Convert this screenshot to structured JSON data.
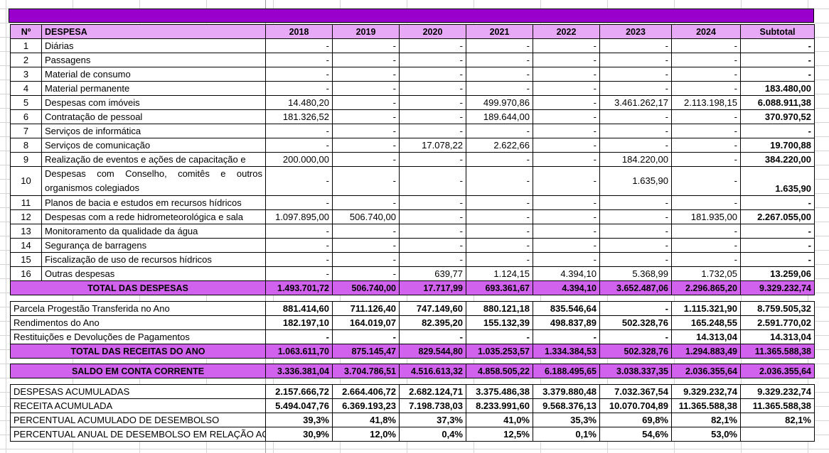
{
  "header": {
    "num": "Nº",
    "despesa": "DESPESA",
    "years": [
      "2018",
      "2019",
      "2020",
      "2021",
      "2022",
      "2023",
      "2024"
    ],
    "subtotal": "Subtotal"
  },
  "despesas": [
    {
      "n": "1",
      "label": "Diárias",
      "v": [
        "-",
        "-",
        "-",
        "-",
        "-",
        "-",
        "-"
      ],
      "sub": "-"
    },
    {
      "n": "2",
      "label": "Passagens",
      "v": [
        "-",
        "-",
        "-",
        "-",
        "-",
        "-",
        "-"
      ],
      "sub": "-"
    },
    {
      "n": "3",
      "label": "Material de consumo",
      "v": [
        "-",
        "-",
        "-",
        "-",
        "-",
        "-",
        "-"
      ],
      "sub": "-"
    },
    {
      "n": "4",
      "label": "Material permanente",
      "v": [
        "-",
        "-",
        "-",
        "-",
        "-",
        "-",
        "-"
      ],
      "sub": "183.480,00"
    },
    {
      "n": "5",
      "label": "Despesas com imóveis",
      "v": [
        "14.480,20",
        "-",
        "-",
        "499.970,86",
        "-",
        "3.461.262,17",
        "2.113.198,15"
      ],
      "sub": "6.088.911,38"
    },
    {
      "n": "6",
      "label": "Contratação de pessoal",
      "v": [
        "181.326,52",
        "-",
        "-",
        "189.644,00",
        "-",
        "-",
        "-"
      ],
      "sub": "370.970,52"
    },
    {
      "n": "7",
      "label": "Serviços de informática",
      "v": [
        "-",
        "-",
        "-",
        "-",
        "-",
        "-",
        "-"
      ],
      "sub": "-"
    },
    {
      "n": "8",
      "label": "Serviços de comunicação",
      "v": [
        "-",
        "-",
        "17.078,22",
        "2.622,66",
        "-",
        "-",
        "-"
      ],
      "sub": "19.700,88"
    },
    {
      "n": "9",
      "label": "Realização de eventos e ações de capacitação e",
      "v": [
        "200.000,00",
        "-",
        "-",
        "-",
        "-",
        "184.220,00",
        "-"
      ],
      "sub": "384.220,00"
    },
    {
      "n": "10",
      "label": "Despesas com Conselho, comitês e outros organismos colegiados",
      "v": [
        "-",
        "-",
        "-",
        "-",
        "-",
        "1.635,90",
        "-"
      ],
      "sub": "1.635,90",
      "tall": true
    },
    {
      "n": "11",
      "label": "Planos de bacia e estudos em recursos hídricos",
      "v": [
        "-",
        "-",
        "-",
        "-",
        "-",
        "-",
        "-"
      ],
      "sub": "-"
    },
    {
      "n": "12",
      "label": "Despesas com a rede hidrometeorológica e sala",
      "v": [
        "1.097.895,00",
        "506.740,00",
        "-",
        "-",
        "-",
        "-",
        "181.935,00"
      ],
      "sub": "2.267.055,00"
    },
    {
      "n": "13",
      "label": "Monitoramento da qualidade da água",
      "v": [
        "-",
        "-",
        "-",
        "-",
        "-",
        "-",
        "-"
      ],
      "sub": "-"
    },
    {
      "n": "14",
      "label": "Segurança de barragens",
      "v": [
        "-",
        "-",
        "-",
        "-",
        "-",
        "-",
        "-"
      ],
      "sub": "-"
    },
    {
      "n": "15",
      "label": "Fiscalização de uso de recursos hídricos",
      "v": [
        "-",
        "-",
        "-",
        "-",
        "-",
        "-",
        "-"
      ],
      "sub": "-"
    },
    {
      "n": "16",
      "label": "Outras despesas",
      "v": [
        "-",
        "-",
        "639,77",
        "1.124,15",
        "4.394,10",
        "5.368,99",
        "1.732,05"
      ],
      "sub": "13.259,06"
    }
  ],
  "total_despesas": {
    "label": "TOTAL DAS DESPESAS",
    "v": [
      "1.493.701,72",
      "506.740,00",
      "17.717,99",
      "693.361,67",
      "4.394,10",
      "3.652.487,06",
      "2.296.865,20"
    ],
    "sub": "9.329.232,74"
  },
  "receitas": [
    {
      "label": "Parcela Progestão Transferida no Ano",
      "v": [
        "881.414,60",
        "711.126,40",
        "747.149,60",
        "880.121,18",
        "835.546,64",
        "-",
        "1.115.321,90"
      ],
      "sub": "8.759.505,32"
    },
    {
      "label": "Rendimentos do Ano",
      "v": [
        "182.197,10",
        "164.019,07",
        "82.395,20",
        "155.132,39",
        "498.837,89",
        "502.328,76",
        "165.248,55"
      ],
      "sub": "2.591.770,02"
    },
    {
      "label": "Restituições e Devoluções de Pagamentos",
      "v": [
        "-",
        "-",
        "-",
        "-",
        "-",
        "-",
        "14.313,04"
      ],
      "sub": "14.313,04"
    }
  ],
  "total_receitas": {
    "label": "TOTAL DAS RECEITAS DO ANO",
    "v": [
      "1.063.611,70",
      "875.145,47",
      "829.544,80",
      "1.035.253,57",
      "1.334.384,53",
      "502.328,76",
      "1.294.883,49"
    ],
    "sub": "11.365.588,38"
  },
  "saldo": {
    "label": "SALDO EM CONTA CORRENTE",
    "v": [
      "3.336.381,04",
      "3.704.786,51",
      "4.516.613,32",
      "4.858.505,22",
      "6.188.495,65",
      "3.038.337,35",
      "2.036.355,64"
    ],
    "sub": "2.036.355,64"
  },
  "acumulados": [
    {
      "label": "DESPESAS ACUMULADAS",
      "v": [
        "2.157.666,72",
        "2.664.406,72",
        "2.682.124,71",
        "3.375.486,38",
        "3.379.880,48",
        "7.032.367,54",
        "9.329.232,74"
      ],
      "sub": "9.329.232,74"
    },
    {
      "label": "RECEITA ACUMULADA",
      "v": [
        "5.494.047,76",
        "6.369.193,23",
        "7.198.738,03",
        "8.233.991,60",
        "9.568.376,13",
        "10.070.704,89",
        "11.365.588,38"
      ],
      "sub": "11.365.588,38"
    },
    {
      "label": "PERCENTUAL ACUMULADO DE DESEMBOLSO",
      "v": [
        "39,3%",
        "41,8%",
        "37,3%",
        "41,0%",
        "35,3%",
        "69,8%",
        "82,1%"
      ],
      "sub": "82,1%"
    },
    {
      "label": "PERCENTUAL ANUAL DE DESEMBOLSO EM RELAÇÃO AO",
      "v": [
        "30,9%",
        "12,0%",
        "0,4%",
        "12,5%",
        "0,1%",
        "54,6%",
        "53,0%"
      ],
      "sub": ""
    }
  ]
}
